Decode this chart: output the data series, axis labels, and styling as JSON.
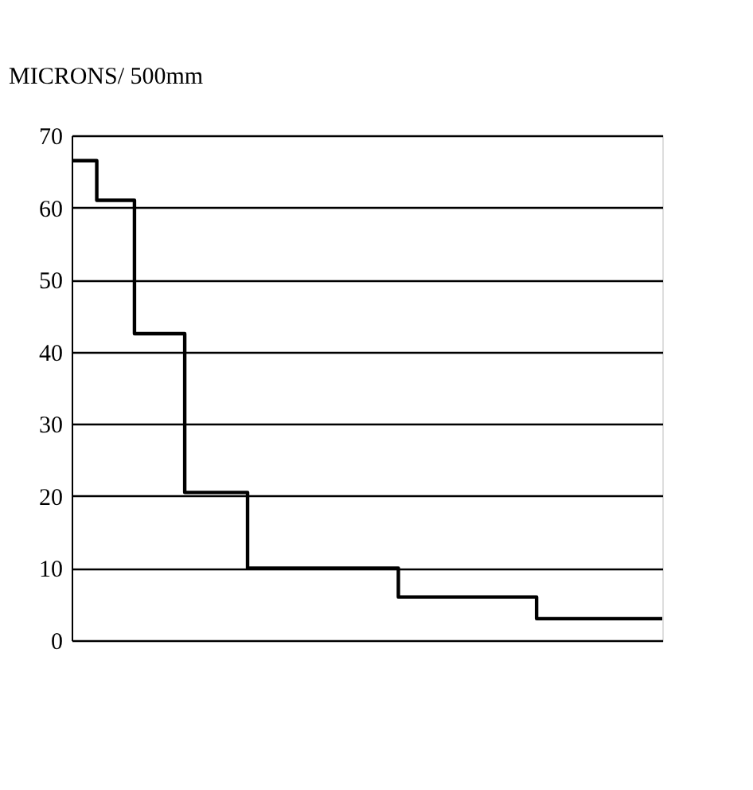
{
  "chart_data": {
    "type": "step",
    "ylabel": "MICRONS/ 500mm",
    "categories": [
      null,
      null,
      null,
      null,
      null,
      null,
      null,
      null,
      null,
      null,
      null,
      null,
      null,
      null,
      null,
      null,
      null,
      null,
      null,
      null,
      null,
      null,
      null,
      null,
      null,
      null,
      null,
      null,
      null,
      null,
      null,
      null,
      null,
      null,
      null,
      null,
      null,
      null,
      null,
      null,
      null,
      null,
      null,
      null,
      null,
      null,
      null,
      null
    ],
    "series": [
      {
        "color": "#000000",
        "values": [
          66.5,
          66.5,
          61,
          61,
          61,
          42.5,
          42.5,
          42.5,
          42.5,
          20.5,
          20.5,
          20.5,
          20.5,
          20.5,
          10,
          10,
          10,
          10,
          10,
          10,
          10,
          10,
          10,
          10,
          10,
          10,
          6,
          6,
          6,
          6,
          6,
          6,
          6,
          6,
          6,
          6,
          6,
          3,
          3,
          3,
          3,
          3,
          3,
          3,
          3,
          3,
          3,
          3
        ]
      }
    ],
    "ylim": [
      0,
      70
    ],
    "yticks": [
      0,
      10,
      20,
      30,
      40,
      50,
      60,
      70
    ],
    "grid": "y",
    "tick_labels": "y",
    "line_style": "solid",
    "marker": "none"
  }
}
